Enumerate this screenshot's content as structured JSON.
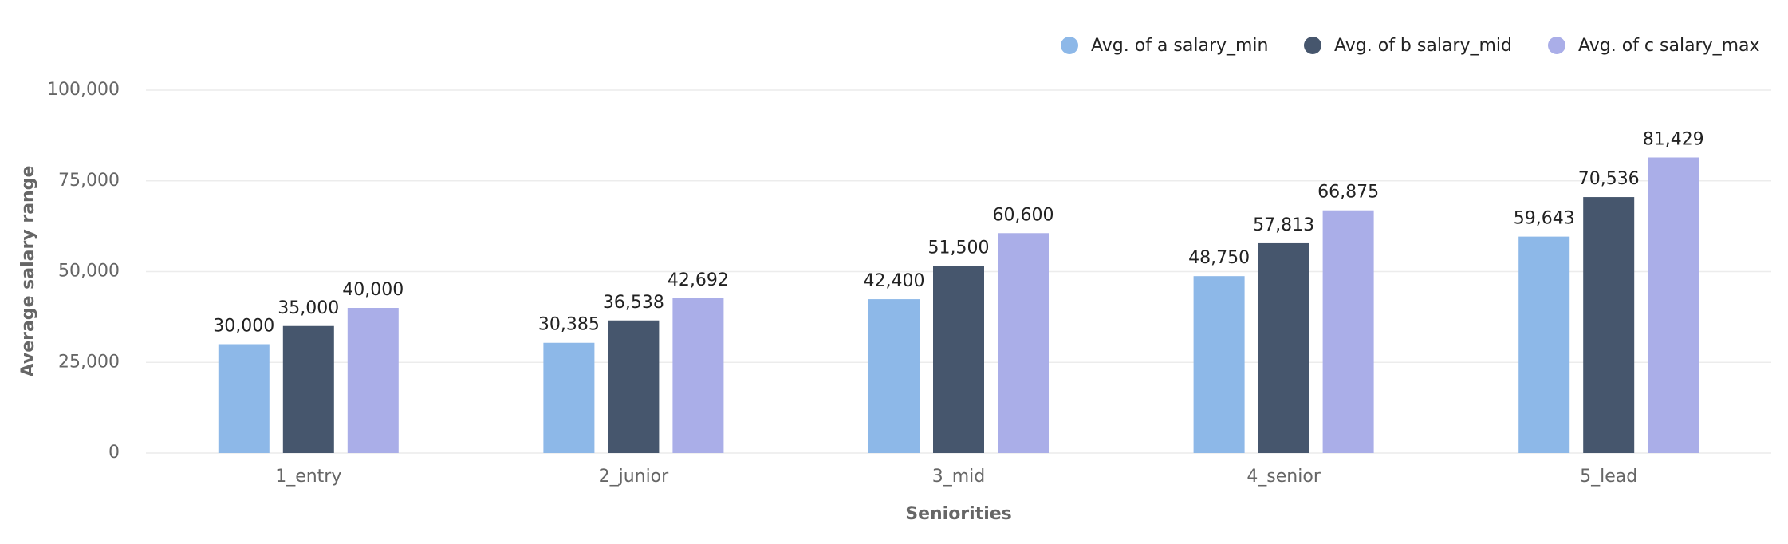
{
  "chart_data": {
    "type": "bar",
    "x_label": "Seniorities",
    "y_label": "Average salary range",
    "categories": [
      "1_entry",
      "2_junior",
      "3_mid",
      "4_senior",
      "5_lead"
    ],
    "series": [
      {
        "name": "Avg. of a salary_min",
        "color": "#8db8e8",
        "values": [
          30000,
          30385,
          42400,
          48750,
          59643
        ],
        "value_labels": [
          "30,000",
          "30,385",
          "42,400",
          "48,750",
          "59,643"
        ]
      },
      {
        "name": "Avg. of b salary_mid",
        "color": "#46566d",
        "values": [
          35000,
          36538,
          51500,
          57813,
          70536
        ],
        "value_labels": [
          "35,000",
          "36,538",
          "51,500",
          "57,813",
          "70,536"
        ]
      },
      {
        "name": "Avg. of c salary_max",
        "color": "#aaaee8",
        "values": [
          40000,
          42692,
          60600,
          66875,
          81429
        ],
        "value_labels": [
          "40,000",
          "42,692",
          "60,600",
          "66,875",
          "81,429"
        ]
      }
    ],
    "ylim": [
      0,
      100000
    ],
    "yticks": [
      0,
      {
        "value": 25000,
        "label": "25,000"
      },
      {
        "value": 50000,
        "label": "50,000"
      },
      {
        "value": 75000,
        "label": "75,000"
      },
      {
        "value": 100000,
        "label": "100,000"
      }
    ],
    "grid": true,
    "legend": "top-right"
  }
}
